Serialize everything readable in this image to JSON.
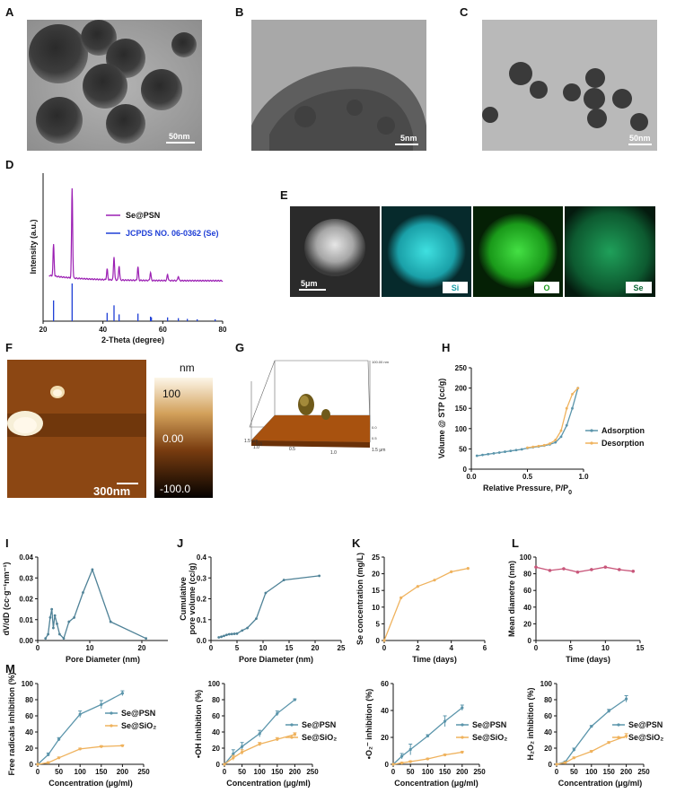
{
  "panels": {
    "A": {
      "label": "A",
      "scale": "50nm"
    },
    "B": {
      "label": "B",
      "scale": "5nm"
    },
    "C": {
      "label": "C",
      "scale": "50nm"
    },
    "D": {
      "label": "D"
    },
    "E": {
      "label": "E",
      "scale": "5μm",
      "maps": [
        "Si",
        "O",
        "Se"
      ]
    },
    "F": {
      "label": "F",
      "scale": "300nm",
      "colorbar_unit": "nm",
      "colorbar_ticks": [
        "100",
        "0.00",
        "-100.0"
      ]
    },
    "G": {
      "label": "G"
    },
    "H": {
      "label": "H"
    },
    "I": {
      "label": "I"
    },
    "J": {
      "label": "J"
    },
    "K": {
      "label": "K"
    },
    "L": {
      "label": "L"
    },
    "M": {
      "label": "M"
    }
  },
  "colors": {
    "psn": "#5b95ab",
    "sio2": "#efb25d",
    "xrd_pattern": "#9b1fb3",
    "jcpds": "#1f3fd6",
    "mean_d": "#c8567a"
  },
  "chart_data": [
    {
      "id": "D",
      "type": "line",
      "xlabel": "2-Theta (degree)",
      "ylabel": "Intensity (a.u.)",
      "xlim": [
        20,
        80
      ],
      "xticks": [
        20,
        40,
        60,
        80
      ],
      "legend": [
        "Se@PSN",
        "JCPDS NO. 06-0362 (Se)"
      ],
      "pattern_peaks": [
        {
          "x": 23.5,
          "h": 0.35
        },
        {
          "x": 29.7,
          "h": 1.0
        },
        {
          "x": 41.4,
          "h": 0.12
        },
        {
          "x": 43.7,
          "h": 0.26
        },
        {
          "x": 45.4,
          "h": 0.16
        },
        {
          "x": 51.7,
          "h": 0.15
        },
        {
          "x": 55.9,
          "h": 0.09
        },
        {
          "x": 61.6,
          "h": 0.07
        },
        {
          "x": 65.2,
          "h": 0.05
        }
      ],
      "reference_lines": [
        {
          "x": 23.5,
          "h": 0.55
        },
        {
          "x": 29.7,
          "h": 1.0
        },
        {
          "x": 41.4,
          "h": 0.22
        },
        {
          "x": 43.7,
          "h": 0.42
        },
        {
          "x": 45.4,
          "h": 0.18
        },
        {
          "x": 51.7,
          "h": 0.2
        },
        {
          "x": 55.9,
          "h": 0.12
        },
        {
          "x": 56.2,
          "h": 0.1
        },
        {
          "x": 61.6,
          "h": 0.1
        },
        {
          "x": 65.2,
          "h": 0.08
        },
        {
          "x": 68.2,
          "h": 0.06
        },
        {
          "x": 71.5,
          "h": 0.05
        },
        {
          "x": 77.5,
          "h": 0.05
        }
      ]
    },
    {
      "id": "G",
      "type": "surface",
      "z_top": "100.00 nm",
      "y_ticks": [
        "1.5 μm",
        "1.0",
        "0.5",
        "0.0"
      ],
      "x_ticks": [
        "0.0",
        "0.5",
        "1.0",
        "1.5 μm"
      ]
    },
    {
      "id": "H",
      "type": "line",
      "xlabel": "Relative Pressure, P/P",
      "xlabel_sub": "0",
      "ylabel": "Volume @ STP (cc/g)",
      "xlim": [
        0,
        1.0
      ],
      "ylim": [
        0,
        250
      ],
      "xticks": [
        0,
        0.5,
        1.0
      ],
      "xticklabels": [
        "0.0",
        "0.5",
        "1.0"
      ],
      "yticks": [
        0,
        50,
        100,
        150,
        200,
        250
      ],
      "series": [
        {
          "name": "Adsorption",
          "color": "#5b95ab",
          "x": [
            0.05,
            0.1,
            0.15,
            0.2,
            0.25,
            0.3,
            0.35,
            0.4,
            0.45,
            0.5,
            0.55,
            0.6,
            0.65,
            0.7,
            0.75,
            0.8,
            0.85,
            0.9,
            0.95
          ],
          "y": [
            33,
            35,
            37,
            39,
            41,
            43,
            45,
            47,
            49,
            52,
            54,
            56,
            58,
            61,
            66,
            80,
            108,
            150,
            200
          ]
        },
        {
          "name": "Desorption",
          "color": "#efb25d",
          "x": [
            0.95,
            0.9,
            0.85,
            0.8,
            0.75,
            0.7,
            0.65,
            0.6,
            0.55,
            0.5
          ],
          "y": [
            200,
            185,
            150,
            95,
            72,
            63,
            59,
            57,
            55,
            53
          ]
        }
      ]
    },
    {
      "id": "I",
      "type": "line",
      "xlabel": "Pore Diameter (nm)",
      "ylabel": "dV/dD (cc·g⁻¹nm⁻¹)",
      "xlim": [
        0,
        25
      ],
      "ylim": [
        0,
        0.04
      ],
      "xticks": [
        0,
        10,
        20
      ],
      "yticks": [
        0,
        0.01,
        0.02,
        0.03,
        0.04
      ],
      "yticklabels": [
        "0.00",
        "0.01",
        "0.02",
        "0.03",
        "0.04"
      ],
      "series": [
        {
          "color": "#4f8297",
          "x": [
            1.5,
            2.0,
            2.4,
            2.7,
            3.0,
            3.3,
            3.7,
            4.2,
            5.0,
            6.0,
            7.0,
            8.7,
            10.5,
            14.0,
            20.8
          ],
          "y": [
            0.001,
            0.003,
            0.011,
            0.015,
            0.006,
            0.012,
            0.008,
            0.003,
            0.001,
            0.009,
            0.011,
            0.023,
            0.034,
            0.009,
            0.001
          ]
        }
      ]
    },
    {
      "id": "J",
      "type": "line",
      "xlabel": "Pore Diameter (nm)",
      "ylabel": "Cumulative pore volume (cc/g)",
      "xlim": [
        0,
        25
      ],
      "ylim": [
        0,
        0.4
      ],
      "xticks": [
        0,
        5,
        10,
        15,
        20,
        25
      ],
      "yticks": [
        0,
        0.1,
        0.2,
        0.3,
        0.4
      ],
      "yticklabels": [
        "0.0",
        "0.1",
        "0.2",
        "0.3",
        "0.4"
      ],
      "series": [
        {
          "color": "#4f8297",
          "x": [
            1.5,
            2.0,
            2.5,
            3.0,
            3.5,
            4.0,
            4.5,
            5.0,
            6.0,
            7.0,
            8.7,
            10.5,
            14.0,
            20.8
          ],
          "y": [
            0.015,
            0.018,
            0.022,
            0.027,
            0.03,
            0.031,
            0.032,
            0.033,
            0.048,
            0.06,
            0.105,
            0.228,
            0.29,
            0.31
          ]
        }
      ]
    },
    {
      "id": "K",
      "type": "line",
      "xlabel": "Time (days)",
      "ylabel": "Se concentration (mg/L)",
      "xlim": [
        0,
        6
      ],
      "ylim": [
        0,
        25
      ],
      "xticks": [
        0,
        2,
        4,
        6
      ],
      "yticks": [
        0,
        5,
        10,
        15,
        20,
        25
      ],
      "series": [
        {
          "color": "#efb25d",
          "x": [
            0,
            1,
            2,
            3,
            4,
            5
          ],
          "y": [
            0,
            12.8,
            16.2,
            18.1,
            20.6,
            21.6
          ]
        }
      ]
    },
    {
      "id": "L",
      "type": "line",
      "xlabel": "Time (days)",
      "ylabel": "Mean diametre (nm)",
      "xlim": [
        0,
        15
      ],
      "ylim": [
        0,
        100
      ],
      "xticks": [
        0,
        5,
        10,
        15
      ],
      "yticks": [
        0,
        20,
        40,
        60,
        80,
        100
      ],
      "series": [
        {
          "color": "#c8567a",
          "x": [
            0,
            2,
            4,
            6,
            8,
            10,
            12,
            14
          ],
          "y": [
            88,
            84,
            86,
            82,
            85,
            88,
            85,
            83
          ]
        }
      ]
    },
    {
      "id": "M1",
      "type": "line",
      "xlabel": "Concentration (μg/ml)",
      "ylabel": "Free radicals inhibition (%)",
      "xlim": [
        0,
        250
      ],
      "ylim": [
        0,
        100
      ],
      "xticks": [
        0,
        50,
        100,
        150,
        200,
        250
      ],
      "yticks": [
        0,
        20,
        40,
        60,
        80,
        100
      ],
      "series": [
        {
          "name": "Se@PSN",
          "color": "#5b95ab",
          "x": [
            0,
            25,
            50,
            100,
            150,
            200
          ],
          "y": [
            0,
            12,
            31,
            62,
            74,
            88
          ],
          "err": [
            0,
            2,
            2,
            4,
            5,
            3
          ]
        },
        {
          "name": "Se@SiO₂",
          "color": "#efb25d",
          "x": [
            0,
            25,
            50,
            100,
            150,
            200
          ],
          "y": [
            0,
            2,
            8,
            19,
            22,
            23
          ],
          "err": [
            0,
            1,
            1,
            1,
            1,
            1
          ]
        }
      ]
    },
    {
      "id": "M2",
      "type": "line",
      "xlabel": "Concentration (μg/ml)",
      "ylabel": "•OH inhibition (%)",
      "xlim": [
        0,
        250
      ],
      "ylim": [
        0,
        100
      ],
      "xticks": [
        0,
        50,
        100,
        150,
        200,
        250
      ],
      "yticks": [
        0,
        20,
        40,
        60,
        80,
        100
      ],
      "series": [
        {
          "name": "Se@PSN",
          "color": "#5b95ab",
          "x": [
            0,
            25,
            50,
            100,
            150,
            200
          ],
          "y": [
            0,
            13,
            22,
            38,
            63,
            80
          ],
          "err": [
            0,
            5,
            5,
            4,
            3,
            1
          ]
        },
        {
          "name": "Se@SiO₂",
          "color": "#efb25d",
          "x": [
            0,
            25,
            50,
            100,
            150,
            200
          ],
          "y": [
            0,
            8,
            15,
            25,
            31,
            37
          ],
          "err": [
            0,
            3,
            3,
            2,
            2,
            2
          ]
        }
      ]
    },
    {
      "id": "M3",
      "type": "line",
      "xlabel": "Concentration (μg/ml)",
      "ylabel": "•O₂⁻ inhibition (%)",
      "xlim": [
        0,
        250
      ],
      "ylim": [
        0,
        60
      ],
      "xticks": [
        0,
        50,
        100,
        150,
        200,
        250
      ],
      "yticks": [
        0,
        20,
        40,
        60
      ],
      "series": [
        {
          "name": "Se@PSN",
          "color": "#5b95ab",
          "x": [
            0,
            25,
            50,
            100,
            150,
            200
          ],
          "y": [
            0,
            6,
            11,
            21,
            32,
            42
          ],
          "err": [
            0,
            2,
            4,
            1,
            4,
            2
          ]
        },
        {
          "name": "Se@SiO₂",
          "color": "#efb25d",
          "x": [
            0,
            25,
            50,
            100,
            150,
            200
          ],
          "y": [
            0,
            1,
            2,
            4,
            7,
            9
          ],
          "err": [
            0,
            0.5,
            0.5,
            0.5,
            0.5,
            0.5
          ]
        }
      ]
    },
    {
      "id": "M4",
      "type": "line",
      "xlabel": "Concentration (μg/ml)",
      "ylabel": "H₂O₂ inhibition (%)",
      "xlim": [
        0,
        250
      ],
      "ylim": [
        0,
        100
      ],
      "xticks": [
        0,
        50,
        100,
        150,
        200,
        250
      ],
      "yticks": [
        0,
        20,
        40,
        60,
        80,
        100
      ],
      "series": [
        {
          "name": "Se@PSN",
          "color": "#5b95ab",
          "x": [
            0,
            25,
            50,
            100,
            150,
            200
          ],
          "y": [
            0,
            3,
            18,
            47,
            66,
            81
          ],
          "err": [
            0,
            1,
            2,
            1,
            2,
            4
          ]
        },
        {
          "name": "Se@SiO₂",
          "color": "#efb25d",
          "x": [
            0,
            25,
            50,
            100,
            150,
            200
          ],
          "y": [
            0,
            2,
            8,
            16,
            27,
            35
          ],
          "err": [
            0,
            1,
            1,
            1,
            1,
            3
          ]
        }
      ]
    }
  ]
}
